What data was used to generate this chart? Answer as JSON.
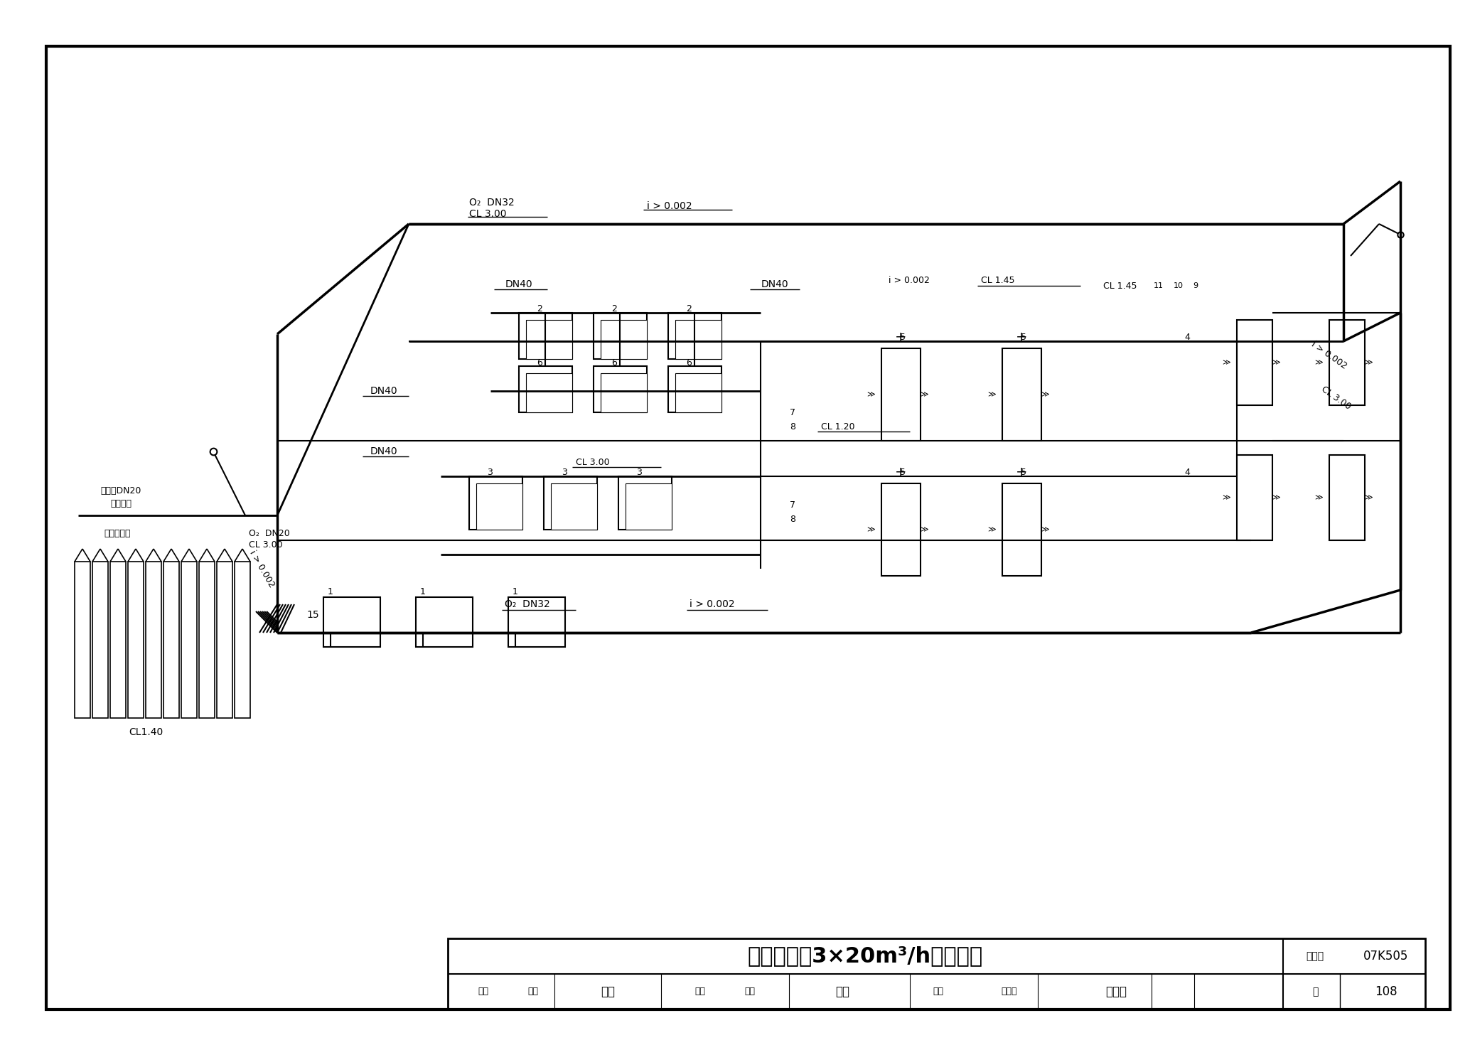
{
  "bg_color": "#ffffff",
  "line_color": "#000000",
  "text_color": "#000000",
  "title": "制氧系统（3×20m³/h）轴测图",
  "drawing_number": "07K505",
  "page": "108"
}
